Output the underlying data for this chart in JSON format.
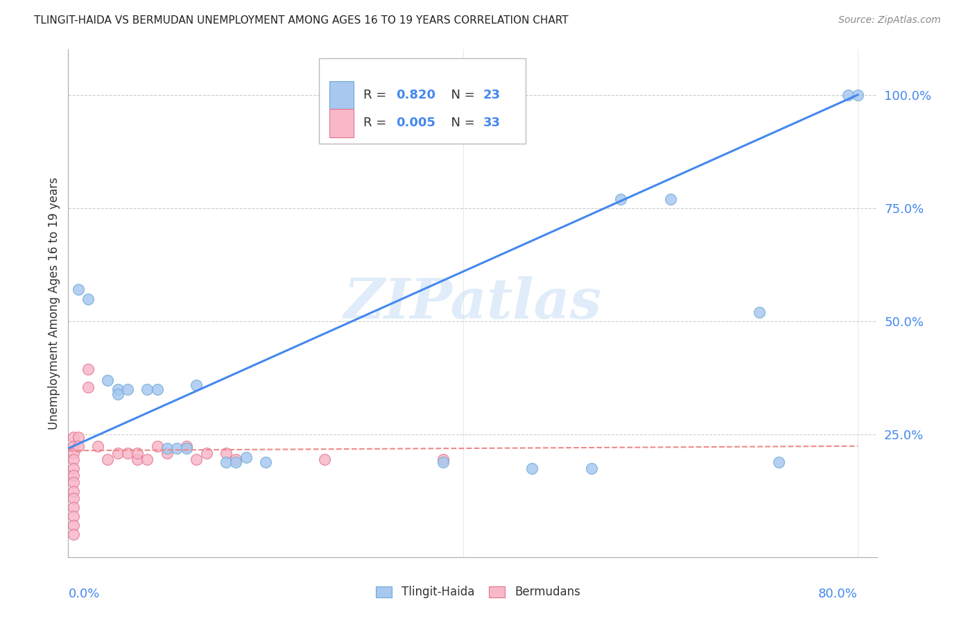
{
  "title": "TLINGIT-HAIDA VS BERMUDAN UNEMPLOYMENT AMONG AGES 16 TO 19 YEARS CORRELATION CHART",
  "source": "Source: ZipAtlas.com",
  "ylabel": "Unemployment Among Ages 16 to 19 years",
  "xlim": [
    0.0,
    0.82
  ],
  "ylim": [
    -0.02,
    1.1
  ],
  "ytick_vals": [
    0.25,
    0.5,
    0.75,
    1.0
  ],
  "ytick_labels": [
    "25.0%",
    "50.0%",
    "75.0%",
    "100.0%"
  ],
  "tlingit_color": "#a8c8f0",
  "tlingit_edge": "#6aaad4",
  "bermudan_color": "#f8b8c8",
  "bermudan_edge": "#e07090",
  "line_tlingit_color": "#4488ee",
  "line_bermudan_color": "#ee8888",
  "watermark_color": "#cce0f5",
  "tlingit_points": [
    [
      0.01,
      0.57
    ],
    [
      0.02,
      0.55
    ],
    [
      0.04,
      0.37
    ],
    [
      0.05,
      0.35
    ],
    [
      0.05,
      0.34
    ],
    [
      0.06,
      0.35
    ],
    [
      0.08,
      0.35
    ],
    [
      0.09,
      0.35
    ],
    [
      0.1,
      0.22
    ],
    [
      0.11,
      0.22
    ],
    [
      0.12,
      0.22
    ],
    [
      0.13,
      0.36
    ],
    [
      0.16,
      0.19
    ],
    [
      0.17,
      0.19
    ],
    [
      0.18,
      0.2
    ],
    [
      0.2,
      0.19
    ],
    [
      0.38,
      0.19
    ],
    [
      0.47,
      0.175
    ],
    [
      0.53,
      0.175
    ],
    [
      0.56,
      0.77
    ],
    [
      0.61,
      0.77
    ],
    [
      0.7,
      0.52
    ],
    [
      0.72,
      0.19
    ],
    [
      0.79,
      1.0
    ],
    [
      0.8,
      1.0
    ]
  ],
  "bermudan_points": [
    [
      0.005,
      0.245
    ],
    [
      0.005,
      0.225
    ],
    [
      0.005,
      0.21
    ],
    [
      0.005,
      0.195
    ],
    [
      0.005,
      0.175
    ],
    [
      0.005,
      0.16
    ],
    [
      0.005,
      0.145
    ],
    [
      0.005,
      0.125
    ],
    [
      0.005,
      0.11
    ],
    [
      0.005,
      0.09
    ],
    [
      0.005,
      0.07
    ],
    [
      0.005,
      0.05
    ],
    [
      0.005,
      0.03
    ],
    [
      0.01,
      0.245
    ],
    [
      0.01,
      0.225
    ],
    [
      0.02,
      0.395
    ],
    [
      0.02,
      0.355
    ],
    [
      0.03,
      0.225
    ],
    [
      0.04,
      0.195
    ],
    [
      0.05,
      0.21
    ],
    [
      0.06,
      0.21
    ],
    [
      0.07,
      0.195
    ],
    [
      0.07,
      0.21
    ],
    [
      0.08,
      0.195
    ],
    [
      0.09,
      0.225
    ],
    [
      0.1,
      0.21
    ],
    [
      0.12,
      0.225
    ],
    [
      0.13,
      0.195
    ],
    [
      0.14,
      0.21
    ],
    [
      0.16,
      0.21
    ],
    [
      0.17,
      0.195
    ],
    [
      0.26,
      0.195
    ],
    [
      0.38,
      0.195
    ]
  ],
  "tlingit_line": [
    0.0,
    0.8
  ],
  "tlingit_line_y": [
    0.22,
    1.0
  ],
  "bermudan_line": [
    0.0,
    0.8
  ],
  "bermudan_line_y": [
    0.215,
    0.225
  ]
}
